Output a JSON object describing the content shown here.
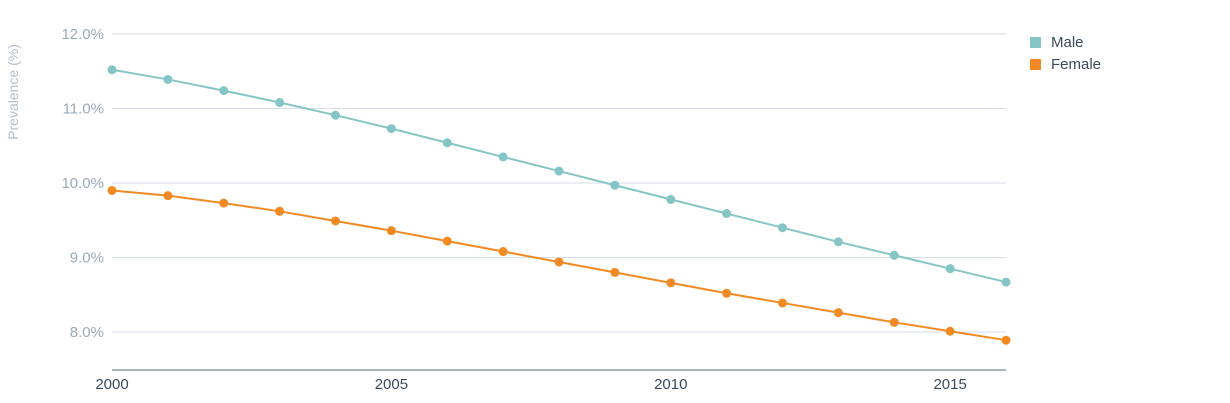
{
  "chart_data": {
    "type": "line",
    "title": "",
    "xlabel": "",
    "ylabel": "Prevalence (%)",
    "x": [
      2000,
      2001,
      2002,
      2003,
      2004,
      2005,
      2006,
      2007,
      2008,
      2009,
      2010,
      2011,
      2012,
      2013,
      2014,
      2015,
      2016
    ],
    "xticks": [
      2000,
      2005,
      2010,
      2015
    ],
    "xtick_labels": [
      "2000",
      "2005",
      "2010",
      "2015"
    ],
    "yticks": [
      8.0,
      9.0,
      10.0,
      11.0,
      12.0
    ],
    "ytick_labels": [
      "8.0%",
      "9.0%",
      "10.0%",
      "11.0%",
      "12.0%"
    ],
    "ylim": [
      7.5,
      12.0
    ],
    "xlim": [
      2000,
      2016
    ],
    "grid": true,
    "legend_position": "top-right",
    "series": [
      {
        "name": "Male",
        "color": "#86c5c5",
        "values": [
          11.52,
          11.39,
          11.24,
          11.08,
          10.91,
          10.73,
          10.54,
          10.35,
          10.16,
          9.97,
          9.78,
          9.59,
          9.4,
          9.21,
          9.03,
          8.85,
          8.67
        ]
      },
      {
        "name": "Female",
        "color": "#f28a24",
        "values": [
          9.9,
          9.83,
          9.73,
          9.62,
          9.49,
          9.36,
          9.22,
          9.08,
          8.94,
          8.8,
          8.66,
          8.52,
          8.39,
          8.26,
          8.13,
          8.01,
          7.89
        ]
      }
    ]
  }
}
